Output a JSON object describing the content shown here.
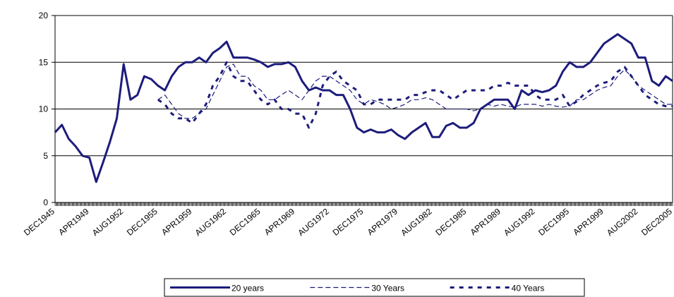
{
  "chart_data": {
    "type": "line",
    "categories": [
      "DEC1945",
      null,
      null,
      null,
      null,
      "APR1949",
      null,
      null,
      null,
      null,
      "AUG1952",
      null,
      null,
      null,
      null,
      "DEC1955",
      null,
      null,
      null,
      null,
      "APR1959",
      null,
      null,
      null,
      null,
      "AUG1962",
      null,
      null,
      null,
      null,
      "DEC1965",
      null,
      null,
      null,
      null,
      "APR1969",
      null,
      null,
      null,
      null,
      "AUG1972",
      null,
      null,
      null,
      null,
      "DEC1975",
      null,
      null,
      null,
      null,
      "APR1979",
      null,
      null,
      null,
      null,
      "AUG1982",
      null,
      null,
      null,
      null,
      "DEC1985",
      null,
      null,
      null,
      null,
      "APR1989",
      null,
      null,
      null,
      null,
      "AUG1992",
      null,
      null,
      null,
      null,
      "DEC1995",
      null,
      null,
      null,
      null,
      "APR1999",
      null,
      null,
      null,
      null,
      "AUG2002",
      null,
      null,
      null,
      null,
      "DEC2005"
    ],
    "series": [
      {
        "name": "20 years",
        "color": "#1c1c7c",
        "line_style": "solid",
        "values": [
          7.5,
          8.3,
          6.8,
          6.0,
          5.0,
          4.8,
          2.2,
          4.3,
          6.5,
          9.0,
          14.8,
          11.0,
          11.5,
          13.5,
          13.2,
          12.5,
          12.0,
          13.5,
          14.5,
          15.0,
          15.0,
          15.5,
          15.0,
          16.0,
          16.5,
          17.2,
          15.5,
          15.5,
          15.5,
          15.3,
          15.0,
          14.5,
          14.8,
          14.8,
          15.0,
          14.5,
          13.0,
          12.0,
          12.3,
          12.0,
          12.0,
          11.5,
          11.5,
          10.0,
          8.0,
          7.5,
          7.8,
          7.5,
          7.5,
          7.8,
          7.2,
          6.8,
          7.5,
          8.0,
          8.5,
          7.0,
          7.0,
          8.2,
          8.5,
          8.0,
          8.0,
          8.5,
          10.0,
          10.5,
          11.0,
          11.0,
          11.0,
          10.0,
          12.0,
          11.5,
          12.0,
          11.8,
          12.0,
          12.5,
          14.0,
          15.0,
          14.5,
          14.5,
          15.0,
          16.0,
          17.0,
          17.5,
          18.0,
          17.5,
          17.0,
          15.5,
          15.5,
          13.0,
          12.5,
          13.5,
          13.0
        ]
      },
      {
        "name": "30 Years",
        "color": "#1c1c7c",
        "line_style": "dashed",
        "values": [
          null,
          null,
          null,
          null,
          null,
          null,
          null,
          null,
          null,
          null,
          null,
          null,
          null,
          null,
          null,
          11.0,
          11.5,
          10.5,
          9.5,
          9.0,
          9.0,
          9.5,
          10.0,
          11.5,
          13.0,
          14.5,
          14.8,
          13.5,
          13.5,
          12.5,
          12.0,
          11.0,
          11.0,
          11.5,
          12.0,
          11.5,
          11.0,
          12.0,
          13.0,
          13.5,
          13.5,
          13.0,
          12.5,
          12.0,
          11.0,
          10.5,
          11.0,
          10.8,
          10.5,
          10.0,
          10.2,
          10.5,
          11.0,
          11.0,
          11.2,
          11.0,
          10.5,
          10.0,
          10.0,
          10.0,
          10.0,
          9.8,
          10.0,
          10.5,
          10.3,
          10.5,
          10.3,
          10.2,
          10.5,
          10.5,
          10.5,
          10.3,
          10.5,
          10.3,
          10.2,
          10.3,
          11.0,
          11.0,
          11.5,
          12.0,
          12.3,
          12.5,
          13.5,
          14.2,
          13.5,
          12.5,
          12.0,
          11.5,
          11.0,
          10.5,
          10.5
        ]
      },
      {
        "name": "40 Years",
        "color": "#1c1c7c",
        "line_style": "thick-dashed",
        "values": [
          null,
          null,
          null,
          null,
          null,
          null,
          null,
          null,
          null,
          null,
          null,
          null,
          null,
          null,
          null,
          11.0,
          10.5,
          9.5,
          9.0,
          9.0,
          8.5,
          9.5,
          10.5,
          12.5,
          13.5,
          15.0,
          13.5,
          13.0,
          13.0,
          12.0,
          11.0,
          10.5,
          11.0,
          10.0,
          10.0,
          9.5,
          9.5,
          8.0,
          9.5,
          12.5,
          13.5,
          14.0,
          13.0,
          12.5,
          12.0,
          10.5,
          10.5,
          11.0,
          11.0,
          11.0,
          11.0,
          11.0,
          11.5,
          11.5,
          11.8,
          12.0,
          12.0,
          11.5,
          11.0,
          11.5,
          12.0,
          12.0,
          12.0,
          12.0,
          12.5,
          12.5,
          12.8,
          12.5,
          12.5,
          12.5,
          11.5,
          11.0,
          11.0,
          11.0,
          11.5,
          10.3,
          10.8,
          11.5,
          12.0,
          12.5,
          12.8,
          13.0,
          14.0,
          14.5,
          13.5,
          12.5,
          11.5,
          11.0,
          10.5,
          10.3,
          10.3
        ]
      }
    ],
    "ylim": [
      0,
      20
    ],
    "yticks": [
      0,
      5,
      10,
      15,
      20
    ],
    "grid": true,
    "legend": "bottom"
  }
}
